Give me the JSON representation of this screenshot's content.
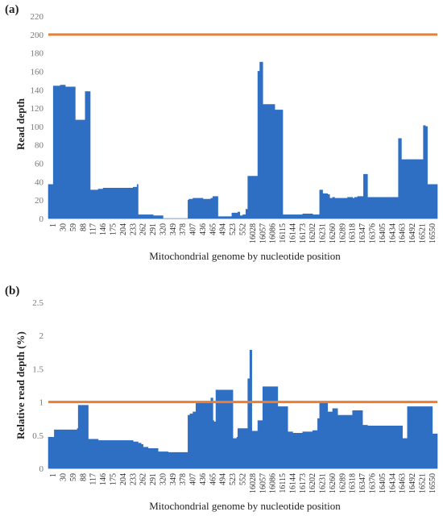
{
  "figure": {
    "panel_a_letter": "(a)",
    "panel_b_letter": "(b)"
  },
  "colors": {
    "bar": "#2e6fc4",
    "reference_line": "#ed7d31",
    "tick_text": "#777777"
  },
  "chart_data": [
    {
      "type": "area",
      "panel": "(a)",
      "title": "",
      "xlabel": "Mitochondrial genome by nucleotide position",
      "ylabel": "Read depth",
      "ylim": [
        0,
        220
      ],
      "yticks": [
        0,
        20,
        40,
        60,
        80,
        100,
        120,
        140,
        160,
        180,
        200,
        220
      ],
      "grid": false,
      "xtick_labels": [
        "1",
        "30",
        "59",
        "88",
        "117",
        "146",
        "175",
        "204",
        "233",
        "262",
        "291",
        "320",
        "349",
        "378",
        "407",
        "436",
        "465",
        "494",
        "523",
        "552",
        "16028",
        "16057",
        "16086",
        "16115",
        "16144",
        "16173",
        "16202",
        "16231",
        "16260",
        "16289",
        "16318",
        "16347",
        "16376",
        "16405",
        "16434",
        "16463",
        "16492",
        "16521",
        "16550"
      ],
      "reference_line": {
        "y": 200
      },
      "series": [
        {
          "index": [
            0,
            0.3,
            0.5,
            1,
            1.2,
            1.6,
            1.7,
            2.4,
            2.6,
            2.7,
            3.4,
            3.6,
            3.7,
            4.2,
            4.4,
            4.9,
            5,
            5.4,
            5.5,
            6,
            6.5,
            7,
            7.5,
            8,
            8.5,
            8.8,
            8.9,
            9,
            9.4,
            9.5,
            9.9,
            10,
            10.4,
            10.5,
            11,
            11.5,
            12,
            12.5,
            13,
            13.5,
            14,
            14.1,
            14.2,
            14.5,
            15,
            15.5,
            16,
            16.2,
            16.3,
            16.5,
            16.6,
            16.7,
            17,
            17.5,
            18,
            18.2,
            18.4,
            18.6,
            19,
            19.2,
            19.3,
            19.5,
            19.7,
            19.8,
            20,
            20.2,
            20.5,
            20.7,
            21,
            21.2,
            21.3,
            21.5,
            21.7,
            22,
            22.2,
            22.5,
            22.7,
            22.8,
            23,
            23.2,
            23.5,
            24,
            24.5,
            25,
            25.5,
            26,
            26.5,
            26.9,
            27,
            27.2,
            27.5,
            27.7,
            28,
            28.2,
            28.5,
            28.7,
            29,
            29.5,
            30,
            30.5,
            30.7,
            31,
            31.2,
            31.4,
            31.5,
            31.6,
            32,
            32.5,
            33,
            33.5,
            34,
            34.5,
            35,
            35.1,
            35.3,
            35.4,
            35.5,
            36,
            36.5,
            37,
            37.5,
            37.6,
            37.8,
            38,
            38.5
          ],
          "values": [
            37,
            37,
            144,
            144,
            145,
            145,
            143,
            143,
            143,
            107,
            107,
            107,
            138,
            31,
            31,
            31,
            32,
            32,
            33,
            33,
            33,
            33,
            33,
            33,
            34,
            34,
            37,
            4,
            4,
            4,
            4,
            4,
            4,
            3,
            3,
            0,
            0,
            0,
            0,
            0,
            20,
            21,
            21,
            22,
            22,
            21,
            21,
            21,
            22,
            24,
            24,
            24,
            2,
            2,
            2,
            2,
            6,
            6,
            7,
            3,
            3,
            4,
            4,
            10,
            46,
            46,
            46,
            46,
            160,
            170,
            170,
            124,
            124,
            124,
            124,
            124,
            118,
            118,
            118,
            118,
            4,
            4,
            4,
            4,
            5,
            5,
            4,
            4,
            4,
            31,
            27,
            27,
            26,
            22,
            23,
            22,
            22,
            22,
            23,
            22,
            23,
            24,
            24,
            24,
            24,
            48,
            23,
            23,
            23,
            23,
            23,
            23,
            23,
            87,
            87,
            64,
            64,
            64,
            64,
            64,
            64,
            101,
            100,
            37,
            37
          ]
        }
      ]
    },
    {
      "type": "area",
      "panel": "(b)",
      "title": "",
      "xlabel": "Mitochondrial genome by nucleotide position",
      "ylabel": "Relative read depth (%)",
      "ylim": [
        0,
        2.5
      ],
      "yticks": [
        0,
        0.5,
        1,
        1.5,
        2,
        2.5
      ],
      "grid": false,
      "xtick_labels": [
        "1",
        "30",
        "59",
        "88",
        "117",
        "146",
        "175",
        "204",
        "233",
        "262",
        "291",
        "320",
        "349",
        "378",
        "407",
        "436",
        "465",
        "494",
        "523",
        "552",
        "16028",
        "16057",
        "16086",
        "16115",
        "16144",
        "16173",
        "16202",
        "16231",
        "16260",
        "16289",
        "16318",
        "16347",
        "16376",
        "16405",
        "16434",
        "16463",
        "16492",
        "16521",
        "16550"
      ],
      "reference_line": {
        "y": 1
      },
      "series": [
        {
          "index": [
            0,
            0.3,
            0.6,
            1,
            1.5,
            2,
            2.5,
            2.9,
            3,
            3.5,
            3.9,
            4,
            4.5,
            5,
            5.5,
            6,
            6.5,
            7,
            7.5,
            8,
            8.5,
            9,
            9.3,
            9.5,
            10,
            10.5,
            11,
            11.5,
            12,
            12.5,
            13,
            13.5,
            14,
            14.2,
            14.5,
            14.8,
            15,
            15.5,
            16,
            16.3,
            16.5,
            16.6,
            16.8,
            17,
            17.5,
            18,
            18.5,
            18.9,
            19,
            19.2,
            19.5,
            19.8,
            20,
            20.2,
            20.4,
            20.5,
            20.6,
            20.8,
            21,
            21.5,
            22,
            22.5,
            23,
            23.5,
            24,
            24.5,
            25,
            25.5,
            26,
            26.5,
            27,
            27.2,
            27.5,
            28,
            28.5,
            29,
            29.5,
            30,
            30.5,
            31,
            31.5,
            32,
            32.5,
            33,
            33.5,
            34,
            34.5,
            35,
            35.5,
            36,
            36.5,
            37,
            37.5,
            38,
            38.5
          ],
          "values": [
            0.47,
            0.47,
            0.58,
            0.58,
            0.58,
            0.58,
            0.58,
            0.6,
            0.95,
            0.95,
            0.95,
            0.44,
            0.44,
            0.42,
            0.42,
            0.42,
            0.42,
            0.42,
            0.42,
            0.42,
            0.4,
            0.38,
            0.36,
            0.32,
            0.3,
            0.3,
            0.25,
            0.25,
            0.24,
            0.24,
            0.24,
            0.24,
            0.8,
            0.82,
            0.85,
            1.0,
            1.0,
            1.0,
            1.0,
            1.06,
            0.72,
            0.7,
            1.18,
            1.18,
            1.18,
            1.18,
            0.45,
            0.47,
            0.6,
            0.6,
            0.6,
            0.6,
            1.35,
            1.78,
            0.56,
            0.56,
            0.56,
            0.56,
            0.72,
            1.23,
            1.23,
            1.23,
            0.93,
            0.93,
            0.55,
            0.53,
            0.53,
            0.55,
            0.55,
            0.57,
            0.75,
            0.98,
            0.98,
            0.85,
            0.9,
            0.8,
            0.8,
            0.8,
            0.87,
            0.87,
            0.65,
            0.64,
            0.64,
            0.64,
            0.64,
            0.64,
            0.64,
            0.64,
            0.45,
            0.93,
            0.93,
            0.93,
            0.93,
            0.93,
            0.52,
            0.48,
            0.47
          ]
        }
      ]
    }
  ]
}
